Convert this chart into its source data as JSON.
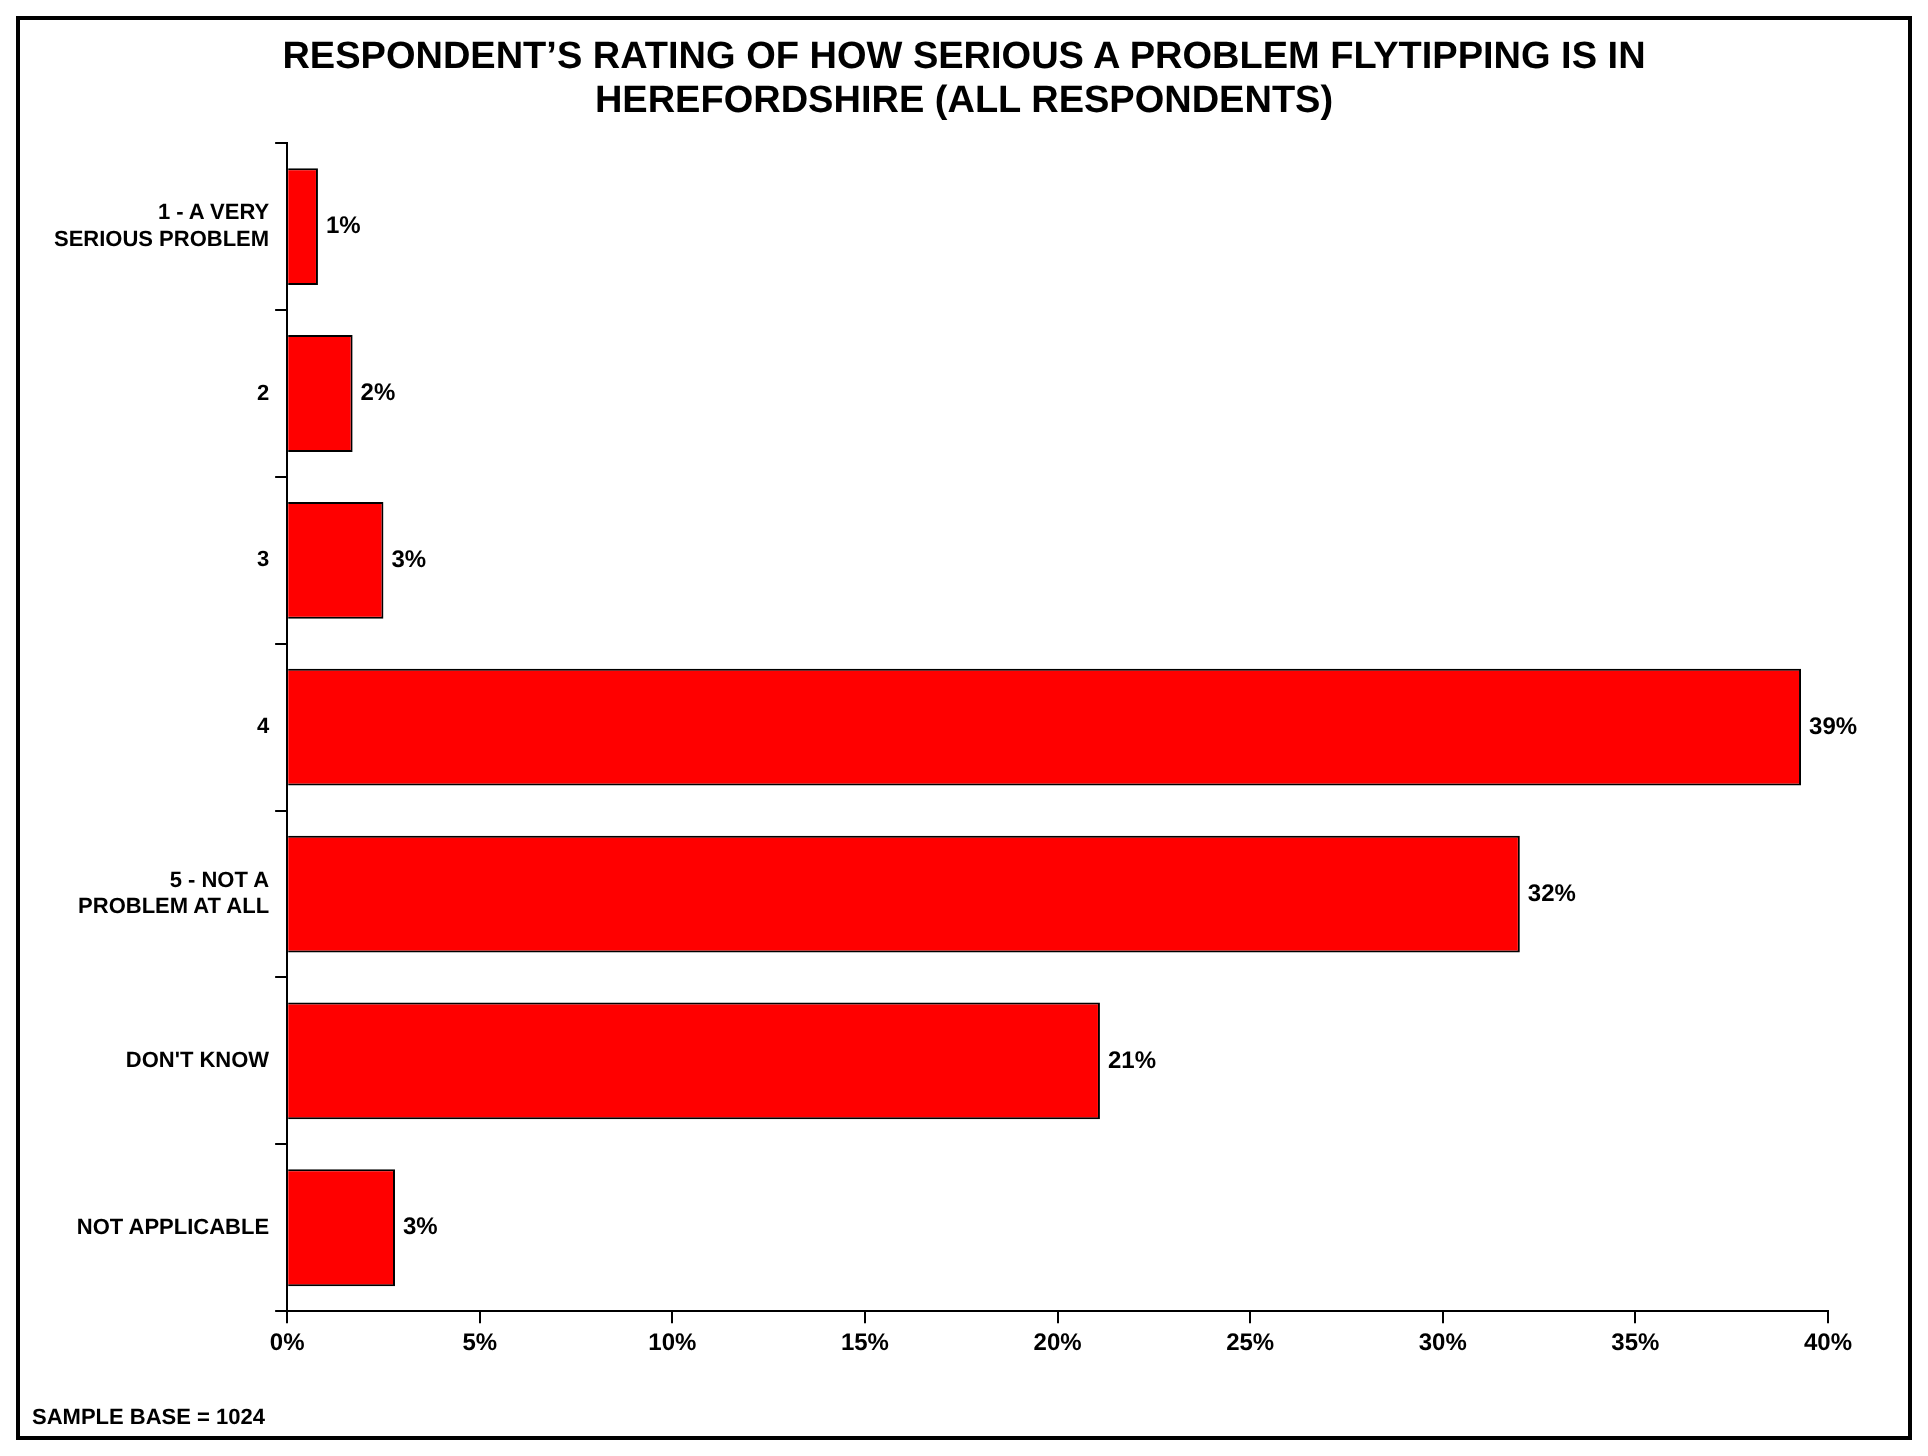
{
  "chart_data": {
    "type": "bar",
    "orientation": "horizontal",
    "title": "RESPONDENT’S RATING OF HOW SERIOUS A PROBLEM FLYTIPPING IS IN HEREFORDSHIRE (ALL RESPONDENTS)",
    "categories": [
      "1 - A VERY SERIOUS PROBLEM",
      "2",
      "3",
      "4",
      "5 - NOT A PROBLEM AT ALL",
      "DON'T KNOW",
      "NOT APPLICABLE"
    ],
    "values": [
      0.8,
      1.7,
      2.5,
      39.3,
      32.0,
      21.1,
      2.8
    ],
    "value_labels": [
      "1%",
      "2%",
      "3%",
      "39%",
      "32%",
      "21%",
      "3%"
    ],
    "color": "#ff0000",
    "xlim": [
      0,
      40
    ],
    "xticks": [
      {
        "value": 0,
        "label": "0%"
      },
      {
        "value": 5,
        "label": "5%"
      },
      {
        "value": 10,
        "label": "10%"
      },
      {
        "value": 15,
        "label": "15%"
      },
      {
        "value": 20,
        "label": "20%"
      },
      {
        "value": 25,
        "label": "25%"
      },
      {
        "value": 30,
        "label": "30%"
      },
      {
        "value": 35,
        "label": "35%"
      },
      {
        "value": 40,
        "label": "40%"
      }
    ],
    "grid": false,
    "legend": false,
    "annotations": [
      "SAMPLE BASE = 1024"
    ]
  }
}
